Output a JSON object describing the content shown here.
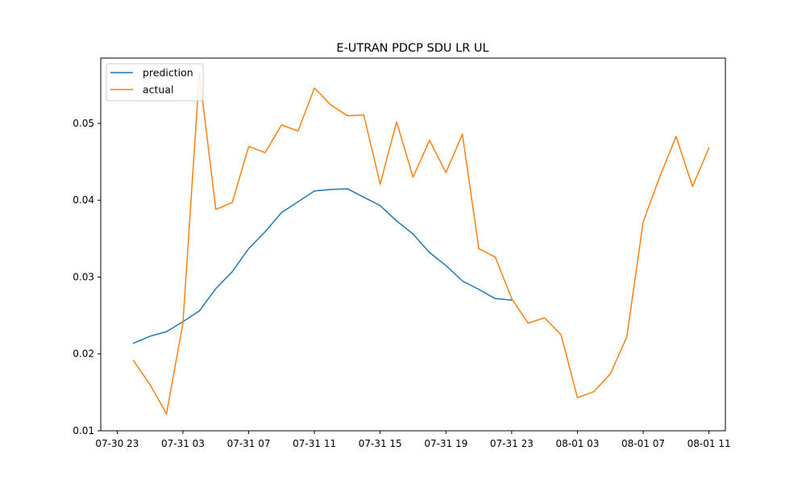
{
  "chart_data": {
    "type": "line",
    "title": "E-UTRAN PDCP SDU LR UL",
    "xlabel": "",
    "ylabel": "",
    "legend_position": "top-left",
    "grid": false,
    "x_ticks": [
      "07-30 23",
      "07-31 03",
      "07-31 07",
      "07-31 11",
      "07-31 15",
      "07-31 19",
      "07-31 23",
      "08-01 03",
      "08-01 07",
      "08-01 11"
    ],
    "y_ticks": [
      "0.01",
      "0.02",
      "0.03",
      "0.04",
      "0.05"
    ],
    "ylim": [
      0.01,
      0.0585
    ],
    "xlim": [
      "07-30 22:00",
      "08-01 12:00"
    ],
    "series": [
      {
        "name": "prediction",
        "color": "#1f77b4",
        "points": [
          [
            "07-31 00:00",
            0.0214
          ],
          [
            "07-31 01:00",
            0.0223
          ],
          [
            "07-31 02:00",
            0.0229
          ],
          [
            "07-31 03:00",
            0.0242
          ],
          [
            "07-31 04:00",
            0.0256
          ],
          [
            "07-31 05:00",
            0.0285
          ],
          [
            "07-31 06:00",
            0.0307
          ],
          [
            "07-31 07:00",
            0.0337
          ],
          [
            "07-31 08:00",
            0.0359
          ],
          [
            "07-31 09:00",
            0.0384
          ],
          [
            "07-31 10:00",
            0.0398
          ],
          [
            "07-31 11:00",
            0.0412
          ],
          [
            "07-31 12:00",
            0.0414
          ],
          [
            "07-31 13:00",
            0.0415
          ],
          [
            "07-31 14:00",
            0.0404
          ],
          [
            "07-31 15:00",
            0.0393
          ],
          [
            "07-31 16:00",
            0.0373
          ],
          [
            "07-31 17:00",
            0.0356
          ],
          [
            "07-31 18:00",
            0.0332
          ],
          [
            "07-31 19:00",
            0.0315
          ],
          [
            "07-31 20:00",
            0.0295
          ],
          [
            "07-31 21:00",
            0.0284
          ],
          [
            "07-31 22:00",
            0.0272
          ],
          [
            "07-31 23:00",
            0.027
          ]
        ]
      },
      {
        "name": "actual",
        "color": "#ff7f0e",
        "points": [
          [
            "07-31 00:00",
            0.0191
          ],
          [
            "07-31 01:00",
            0.016
          ],
          [
            "07-31 02:00",
            0.0122
          ],
          [
            "07-31 03:00",
            0.024
          ],
          [
            "07-31 04:00",
            0.0565
          ],
          [
            "07-31 05:00",
            0.0388
          ],
          [
            "07-31 06:00",
            0.0397
          ],
          [
            "07-31 07:00",
            0.047
          ],
          [
            "07-31 08:00",
            0.0462
          ],
          [
            "07-31 09:00",
            0.0498
          ],
          [
            "07-31 10:00",
            0.049
          ],
          [
            "07-31 11:00",
            0.0546
          ],
          [
            "07-31 12:00",
            0.0524
          ],
          [
            "07-31 13:00",
            0.051
          ],
          [
            "07-31 14:00",
            0.0511
          ],
          [
            "07-31 15:00",
            0.0421
          ],
          [
            "07-31 16:00",
            0.0502
          ],
          [
            "07-31 17:00",
            0.043
          ],
          [
            "07-31 18:00",
            0.0478
          ],
          [
            "07-31 19:00",
            0.0436
          ],
          [
            "07-31 20:00",
            0.0486
          ],
          [
            "07-31 21:00",
            0.0337
          ],
          [
            "07-31 22:00",
            0.0326
          ],
          [
            "07-31 23:00",
            0.0272
          ],
          [
            "08-01 00:00",
            0.024
          ],
          [
            "08-01 01:00",
            0.0247
          ],
          [
            "08-01 02:00",
            0.0225
          ],
          [
            "08-01 03:00",
            0.0143
          ],
          [
            "08-01 04:00",
            0.0151
          ],
          [
            "08-01 05:00",
            0.0174
          ],
          [
            "08-01 06:00",
            0.0222
          ],
          [
            "08-01 07:00",
            0.0372
          ],
          [
            "08-01 08:00",
            0.043
          ],
          [
            "08-01 09:00",
            0.0483
          ],
          [
            "08-01 10:00",
            0.0418
          ],
          [
            "08-01 11:00",
            0.0468
          ]
        ]
      }
    ]
  }
}
